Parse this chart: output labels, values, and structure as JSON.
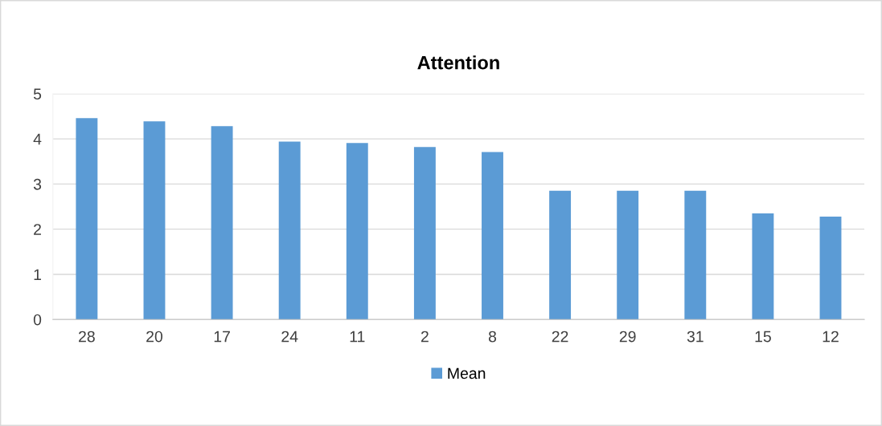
{
  "chart_data": {
    "type": "bar",
    "title": "Attention",
    "categories": [
      "28",
      "20",
      "17",
      "24",
      "11",
      "2",
      "8",
      "22",
      "29",
      "31",
      "15",
      "12"
    ],
    "series": [
      {
        "name": "Mean",
        "color": "#5b9bd5",
        "values": [
          4.46,
          4.39,
          4.28,
          3.94,
          3.91,
          3.82,
          3.71,
          2.85,
          2.85,
          2.85,
          2.35,
          2.28
        ]
      }
    ],
    "ylim": [
      0,
      5
    ],
    "yticks": [
      0,
      1,
      2,
      3,
      4,
      5
    ],
    "grid": "y",
    "legend": "bottom"
  }
}
